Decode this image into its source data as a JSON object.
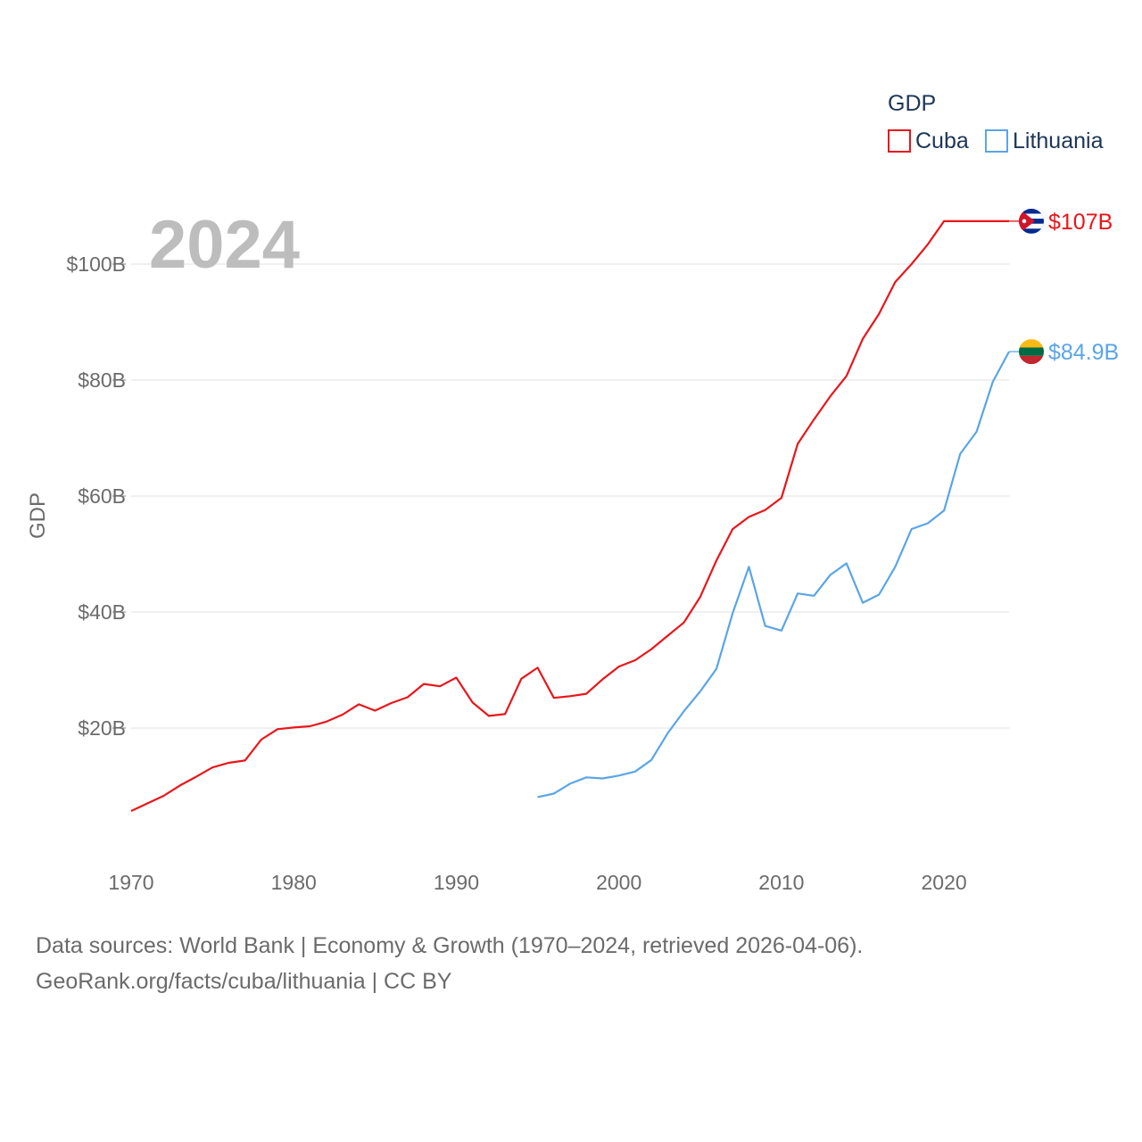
{
  "chart_data": {
    "type": "line",
    "year_label": "2024",
    "legend": {
      "title": "GDP",
      "position": "top-right"
    },
    "ylabel": "GDP",
    "xlim": [
      1970,
      2024
    ],
    "ylim": [
      0,
      110
    ],
    "x_ticks": [
      1970,
      1980,
      1990,
      2000,
      2010,
      2020
    ],
    "y_ticks": [
      {
        "value": 20,
        "label": "$20B"
      },
      {
        "value": 40,
        "label": "$40B"
      },
      {
        "value": 60,
        "label": "$60B"
      },
      {
        "value": 80,
        "label": "$80B"
      },
      {
        "value": 100,
        "label": "$100B"
      }
    ],
    "grid": true,
    "series": [
      {
        "name": "Cuba",
        "color": "#e8161b",
        "end_label": "$107B",
        "flag_icon": "cuba-flag-icon",
        "x": [
          1970,
          1971,
          1972,
          1973,
          1974,
          1975,
          1976,
          1977,
          1978,
          1979,
          1980,
          1981,
          1982,
          1983,
          1984,
          1985,
          1986,
          1987,
          1988,
          1989,
          1990,
          1991,
          1992,
          1993,
          1994,
          1995,
          1996,
          1997,
          1998,
          1999,
          2000,
          2001,
          2002,
          2003,
          2004,
          2005,
          2006,
          2007,
          2008,
          2009,
          2010,
          2011,
          2012,
          2013,
          2014,
          2015,
          2016,
          2017,
          2018,
          2019,
          2020,
          2021,
          2022,
          2023,
          2024
        ],
        "values": [
          5.7,
          7.0,
          8.3,
          10.1,
          11.6,
          13.2,
          14.0,
          14.4,
          18.0,
          19.8,
          20.1,
          20.3,
          21.1,
          22.3,
          24.1,
          23.0,
          24.3,
          25.3,
          27.6,
          27.2,
          28.7,
          24.4,
          22.1,
          22.4,
          28.5,
          30.4,
          25.2,
          25.5,
          25.9,
          28.4,
          30.6,
          31.7,
          33.6,
          35.9,
          38.2,
          42.6,
          48.9,
          54.3,
          56.4,
          57.6,
          59.7,
          69.0,
          73.2,
          77.2,
          80.7,
          87.1,
          91.4,
          96.9,
          100.0,
          103.4,
          107.4,
          107.4,
          107.4,
          107.4,
          107.4
        ]
      },
      {
        "name": "Lithuania",
        "color": "#5aa5e6",
        "end_label": "$84.9B",
        "flag_icon": "lithuania-flag-icon",
        "x": [
          1995,
          1996,
          1997,
          1998,
          1999,
          2000,
          2001,
          2002,
          2003,
          2004,
          2005,
          2006,
          2007,
          2008,
          2009,
          2010,
          2011,
          2012,
          2013,
          2014,
          2015,
          2016,
          2017,
          2018,
          2019,
          2020,
          2021,
          2022,
          2023,
          2024
        ],
        "values": [
          8.1,
          8.7,
          10.4,
          11.5,
          11.3,
          11.8,
          12.5,
          14.5,
          19.1,
          22.9,
          26.3,
          30.2,
          39.8,
          47.8,
          37.6,
          36.8,
          43.2,
          42.8,
          46.4,
          48.4,
          41.6,
          43.0,
          47.8,
          54.3,
          55.3,
          57.5,
          67.3,
          71.1,
          79.7,
          84.9
        ]
      }
    ]
  },
  "footer": {
    "line1": "Data sources: World Bank | Economy & Growth (1970–2024, retrieved 2026-04-06).",
    "line2": "GeoRank.org/facts/cuba/lithuania | CC BY"
  }
}
